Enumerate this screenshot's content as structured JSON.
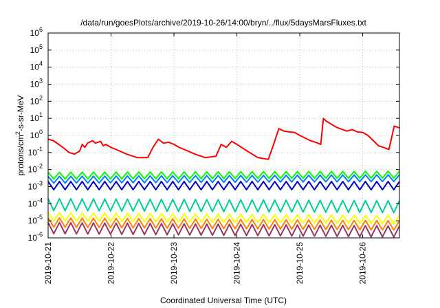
{
  "chart_data": {
    "type": "line",
    "title": "/data/run/goesPlots/archive/2019-10-26/14:00/bryn/../flux/5daysMarsFluxes.txt",
    "xlabel": "Coordinated Universal Time (UTC)",
    "ylabel": "protons/cm²-s-sr-MeV",
    "ylabel_parts": {
      "prefix": "protons/cm",
      "sup": "2",
      "suffix": "-s-sr-MeV"
    },
    "y_scale": "log",
    "ylim": [
      1e-06,
      1000000.0
    ],
    "y_ticks": [
      {
        "base": "10",
        "exp": "-6",
        "value": 1e-06
      },
      {
        "base": "10",
        "exp": "-5",
        "value": 1e-05
      },
      {
        "base": "10",
        "exp": "-4",
        "value": 0.0001
      },
      {
        "base": "10",
        "exp": "-3",
        "value": 0.001
      },
      {
        "base": "10",
        "exp": "-2",
        "value": 0.01
      },
      {
        "base": "10",
        "exp": "-1",
        "value": 0.1
      },
      {
        "base": "10",
        "exp": "0",
        "value": 1
      },
      {
        "base": "10",
        "exp": "1",
        "value": 10
      },
      {
        "base": "10",
        "exp": "2",
        "value": 100
      },
      {
        "base": "10",
        "exp": "3",
        "value": 1000
      },
      {
        "base": "10",
        "exp": "4",
        "value": 10000
      },
      {
        "base": "10",
        "exp": "5",
        "value": 100000
      },
      {
        "base": "10",
        "exp": "6",
        "value": 1000000
      }
    ],
    "xlim": [
      "2019-10-21 00:00",
      "2019-10-26 14:00"
    ],
    "x_ticks": [
      "2019-10-21",
      "2019-10-22",
      "2019-10-23",
      "2019-10-24",
      "2019-10-25",
      "2019-10-26"
    ],
    "grid": true,
    "legend": "none",
    "series": [
      {
        "color": "#ff0000",
        "x": [
          "2019-10-21 00:00",
          "2019-10-21 02:00",
          "2019-10-21 04:00",
          "2019-10-21 06:00",
          "2019-10-21 08:00",
          "2019-10-21 10:00",
          "2019-10-21 12:00",
          "2019-10-21 13:00",
          "2019-10-21 14:00",
          "2019-10-21 15:00",
          "2019-10-21 17:00",
          "2019-10-21 18:00",
          "2019-10-21 20:00",
          "2019-10-21 21:00",
          "2019-10-21 22:00",
          "2019-10-22 00:00",
          "2019-10-22 02:00",
          "2019-10-22 06:00",
          "2019-10-22 10:00",
          "2019-10-22 14:00",
          "2019-10-22 16:00",
          "2019-10-22 18:00",
          "2019-10-22 20:00",
          "2019-10-22 22:00",
          "2019-10-23 00:00",
          "2019-10-23 02:00",
          "2019-10-23 04:00",
          "2019-10-23 08:00",
          "2019-10-23 12:00",
          "2019-10-23 16:00",
          "2019-10-23 18:00",
          "2019-10-23 20:00",
          "2019-10-23 22:00",
          "2019-10-24 00:00",
          "2019-10-24 04:00",
          "2019-10-24 08:00",
          "2019-10-24 12:00",
          "2019-10-24 14:00",
          "2019-10-24 16:00",
          "2019-10-24 18:00",
          "2019-10-24 20:00",
          "2019-10-24 22:00",
          "2019-10-25 00:00",
          "2019-10-25 04:00",
          "2019-10-25 06:00",
          "2019-10-25 08:00",
          "2019-10-25 09:00",
          "2019-10-25 10:00",
          "2019-10-25 14:00",
          "2019-10-25 18:00",
          "2019-10-25 20:00",
          "2019-10-25 22:00",
          "2019-10-26 00:00",
          "2019-10-26 02:00",
          "2019-10-26 04:00",
          "2019-10-26 06:00",
          "2019-10-26 08:00",
          "2019-10-26 10:00",
          "2019-10-26 12:00",
          "2019-10-26 14:00"
        ],
        "y": [
          0.6,
          0.5,
          0.3,
          0.18,
          0.1,
          0.08,
          0.12,
          0.3,
          0.2,
          0.35,
          0.5,
          0.35,
          0.45,
          0.25,
          0.3,
          0.2,
          0.15,
          0.08,
          0.05,
          0.05,
          0.2,
          0.6,
          0.35,
          0.4,
          0.3,
          0.2,
          0.15,
          0.08,
          0.05,
          0.06,
          0.3,
          0.2,
          0.45,
          0.3,
          0.12,
          0.05,
          0.04,
          0.3,
          2.5,
          1.8,
          1.6,
          1.5,
          1.0,
          0.5,
          0.4,
          0.3,
          10,
          7,
          3,
          1.8,
          2.2,
          1.6,
          1.5,
          1.0,
          0.5,
          0.25,
          0.2,
          0.15,
          3.5,
          2.8
        ]
      },
      {
        "color": "#00ff00",
        "x": [
          "2019-10-21 00:00",
          "2019-10-26 14:00"
        ],
        "y": [
          0.007,
          0.008
        ],
        "pattern": "sawtooth",
        "amplitude_factor": 2.5
      },
      {
        "color": "#0080ff",
        "x": [
          "2019-10-21 00:00",
          "2019-10-26 14:00"
        ],
        "y": [
          0.004,
          0.005
        ],
        "pattern": "sawtooth",
        "amplitude_factor": 2.5
      },
      {
        "color": "#0000cc",
        "x": [
          "2019-10-21 00:00",
          "2019-10-26 14:00"
        ],
        "y": [
          0.002,
          0.002
        ],
        "pattern": "sawtooth",
        "amplitude_factor": 3.0
      },
      {
        "color": "#00cc99",
        "x": [
          "2019-10-21 00:00",
          "2019-10-26 14:00"
        ],
        "y": [
          0.0002,
          0.00015
        ],
        "pattern": "sawtooth",
        "amplitude_factor": 5.0
      },
      {
        "color": "#ffff00",
        "x": [
          "2019-10-21 00:00",
          "2019-10-26 14:00"
        ],
        "y": [
          3e-05,
          2e-05
        ],
        "pattern": "sawtooth",
        "amplitude_factor": 3.0
      },
      {
        "color": "#ff8000",
        "x": [
          "2019-10-21 00:00",
          "2019-10-26 14:00"
        ],
        "y": [
          1.5e-05,
          1e-05
        ],
        "pattern": "sawtooth",
        "amplitude_factor": 3.5
      },
      {
        "color": "#993366",
        "x": [
          "2019-10-21 00:00",
          "2019-10-26 14:00"
        ],
        "y": [
          8e-06,
          5e-06
        ],
        "pattern": "sawtooth",
        "amplitude_factor": 4.5
      }
    ]
  }
}
